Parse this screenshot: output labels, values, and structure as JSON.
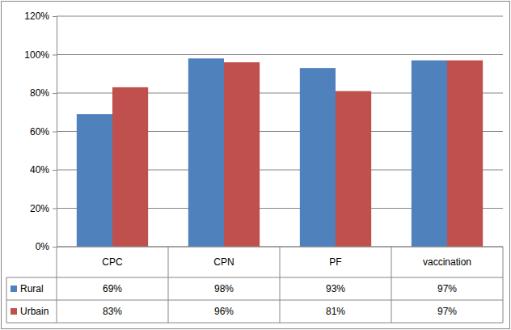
{
  "chart_data": {
    "type": "bar",
    "categories": [
      "CPC",
      "CPN",
      "PF",
      "vaccination"
    ],
    "series": [
      {
        "name": "Rural",
        "color": "#4f81bd",
        "values": [
          69,
          98,
          93,
          97
        ],
        "value_labels": [
          "69%",
          "98%",
          "93%",
          "97%"
        ]
      },
      {
        "name": "Urbain",
        "color": "#c0504d",
        "values": [
          83,
          96,
          81,
          97
        ],
        "value_labels": [
          "83%",
          "96%",
          "81%",
          "97%"
        ]
      }
    ],
    "ylim": [
      0,
      120
    ],
    "yticks": [
      {
        "value": 0,
        "label": "0%"
      },
      {
        "value": 20,
        "label": "20%"
      },
      {
        "value": 40,
        "label": "40%"
      },
      {
        "value": 60,
        "label": "60%"
      },
      {
        "value": 80,
        "label": "80%"
      },
      {
        "value": 100,
        "label": "100%"
      },
      {
        "value": 120,
        "label": "120%"
      }
    ],
    "grid": true
  }
}
